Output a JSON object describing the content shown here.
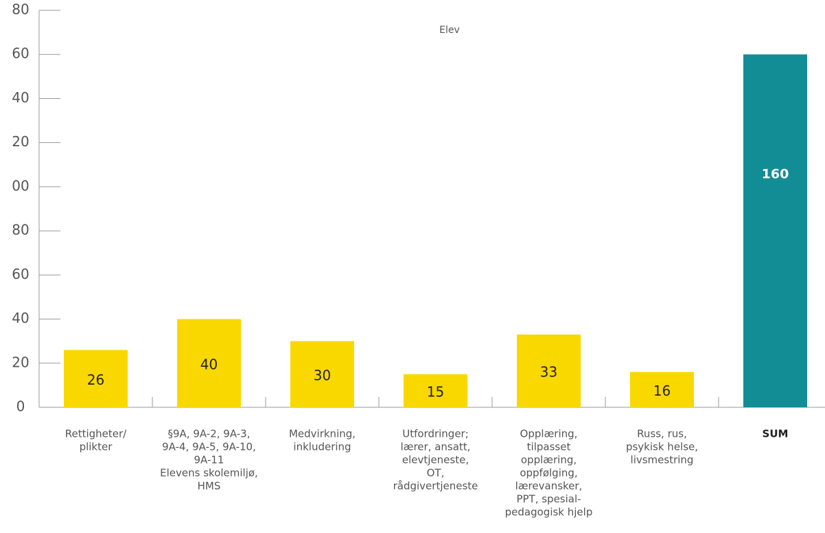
{
  "chart_data": {
    "type": "bar",
    "title": "Elev",
    "categories": [
      [
        "Rettigheter/",
        "plikter"
      ],
      [
        "§9A, 9A-2, 9A-3,",
        "9A-4, 9A-5, 9A-10,",
        "9A-11",
        "Elevens skolemiljø,",
        "HMS"
      ],
      [
        "Medvirkning,",
        "inkludering"
      ],
      [
        "Utfordringer;",
        "lærer, ansatt,",
        "elevtjeneste,",
        "OT,",
        "rådgivertjeneste"
      ],
      [
        "Opplæring,",
        "tilpasset",
        "opplæring,",
        "oppfølging,",
        "lærevansker,",
        "PPT, spesial-",
        "pedagogisk hjelp"
      ],
      [
        "Russ, rus,",
        "psykisk helse,",
        "livsmestring"
      ],
      [
        "SUM"
      ]
    ],
    "values": [
      26,
      40,
      30,
      15,
      33,
      16,
      160
    ],
    "colors": [
      "#f9d800",
      "#f9d800",
      "#f9d800",
      "#f9d800",
      "#f9d800",
      "#f9d800",
      "#138d95"
    ],
    "ylim": [
      0,
      180
    ],
    "yticks": [
      0,
      {
        "value": 20,
        "label": "20"
      },
      {
        "value": 40,
        "label": "40"
      },
      {
        "value": 60,
        "label": "60"
      },
      {
        "value": 80,
        "label": "80"
      },
      {
        "value": 100,
        "label": "00"
      },
      {
        "value": 120,
        "label": "20"
      },
      {
        "value": 140,
        "label": "40"
      },
      {
        "value": 160,
        "label": "60"
      },
      {
        "value": 180,
        "label": "80"
      }
    ]
  }
}
